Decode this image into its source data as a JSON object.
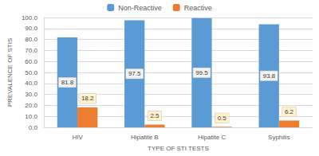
{
  "chart_data": {
    "type": "bar",
    "categories": [
      "HIV",
      "Hipatite B",
      "Hipatite C",
      "Syphilis"
    ],
    "series": [
      {
        "name": "Non-Reactive",
        "color": "#5b9bd5",
        "values": [
          81.8,
          97.5,
          99.5,
          93.8
        ]
      },
      {
        "name": "Reactive",
        "color": "#ed7d31",
        "values": [
          18.2,
          2.5,
          0.5,
          6.2
        ]
      }
    ],
    "x_label": "TYPE OF STI TESTS",
    "y_label": "PREVALENCE OF STIS",
    "ylim": [
      0,
      100
    ],
    "yticks": [
      {
        "value": 0,
        "label": "0.0"
      },
      {
        "value": 10,
        "label": "10.0"
      },
      {
        "value": 20,
        "label": "20.0"
      },
      {
        "value": 30,
        "label": "30.0"
      },
      {
        "value": 40,
        "label": "40.0"
      },
      {
        "value": 50,
        "label": "50.0"
      },
      {
        "value": 60,
        "label": "60.0"
      },
      {
        "value": 70,
        "label": "70.0"
      },
      {
        "value": 80,
        "label": "80.0"
      },
      {
        "value": 90,
        "label": "90.0"
      },
      {
        "value": 100,
        "label": "100.0"
      }
    ],
    "grid": true,
    "legend": "top",
    "data_labels": true
  }
}
